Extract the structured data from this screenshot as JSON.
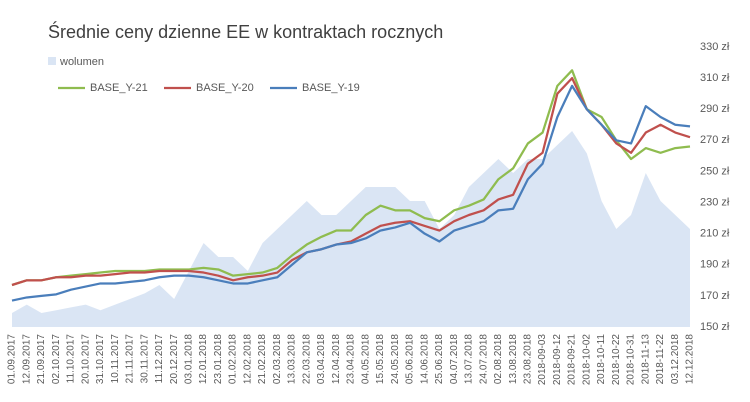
{
  "chart_data": {
    "type": "line",
    "title": "Średnie ceny dzienne EE w kontraktach rocznych",
    "categories": [
      "01.09.2017",
      "12.09.2017",
      "21.09.2017",
      "02.10.2017",
      "11.10.2017",
      "20.10.2017",
      "31.10.2017",
      "10.11.2017",
      "21.11.2017",
      "30.11.2017",
      "11.12.2017",
      "20.12.2017",
      "03.01.2018",
      "12.01.2018",
      "23.01.2018",
      "01.02.2018",
      "12.02.2018",
      "21.02.2018",
      "02.03.2018",
      "13.03.2018",
      "22.03.2018",
      "03.04.2018",
      "12.04.2018",
      "23.04.2018",
      "04.05.2018",
      "15.05.2018",
      "24.05.2018",
      "05.06.2018",
      "14.06.2018",
      "25.06.2018",
      "04.07.2018",
      "13.07.2018",
      "24.07.2018",
      "02.08.2018",
      "13.08.2018",
      "23.08.2018",
      "2018-09-03",
      "2018-09-12",
      "2018-09-21",
      "2018-10-02",
      "2018-10-11",
      "2018-10-22",
      "2018-10-31",
      "2018-11-13",
      "2018-11-22",
      "03.12.2018",
      "12.12.2018"
    ],
    "series": [
      {
        "name": "wolumen",
        "type": "area",
        "axis": "y2",
        "color": "#dae5f4",
        "values": [
          5,
          8,
          5,
          6,
          7,
          8,
          6,
          8,
          10,
          12,
          15,
          10,
          20,
          30,
          25,
          25,
          20,
          30,
          35,
          40,
          45,
          40,
          40,
          45,
          50,
          50,
          50,
          45,
          45,
          35,
          40,
          50,
          55,
          60,
          55,
          60,
          60,
          65,
          70,
          62,
          45,
          35,
          40,
          55,
          45,
          40,
          35
        ]
      },
      {
        "name": "BASE_Y-21",
        "color": "#8fbc4f",
        "values": [
          177,
          180,
          180,
          182,
          183,
          184,
          185,
          186,
          186,
          186,
          187,
          187,
          187,
          188,
          187,
          183,
          184,
          185,
          188,
          196,
          203,
          208,
          212,
          212,
          222,
          228,
          225,
          225,
          220,
          218,
          225,
          228,
          232,
          245,
          252,
          268,
          275,
          305,
          315,
          290,
          285,
          270,
          258,
          265,
          262,
          265,
          266
        ]
      },
      {
        "name": "BASE_Y-20",
        "color": "#c0504d",
        "values": [
          177,
          180,
          180,
          182,
          182,
          183,
          183,
          184,
          185,
          185,
          186,
          186,
          186,
          185,
          183,
          180,
          182,
          183,
          185,
          193,
          198,
          200,
          203,
          205,
          210,
          215,
          217,
          218,
          215,
          212,
          218,
          222,
          225,
          232,
          235,
          255,
          262,
          300,
          310,
          290,
          280,
          268,
          262,
          275,
          280,
          275,
          272
        ]
      },
      {
        "name": "BASE_Y-19",
        "color": "#4a7ebb",
        "values": [
          167,
          169,
          170,
          171,
          174,
          176,
          178,
          178,
          179,
          180,
          182,
          183,
          183,
          182,
          180,
          178,
          178,
          180,
          182,
          190,
          198,
          200,
          203,
          204,
          207,
          212,
          214,
          217,
          210,
          205,
          212,
          215,
          218,
          225,
          226,
          245,
          255,
          285,
          305,
          290,
          280,
          270,
          268,
          292,
          285,
          280,
          279
        ]
      }
    ],
    "ylim": [
      150,
      330
    ],
    "yticks": [
      {
        "value": 150,
        "label": "150 zł"
      },
      {
        "value": 170,
        "label": "170 zł"
      },
      {
        "value": 190,
        "label": "190 zł"
      },
      {
        "value": 210,
        "label": "210 zł"
      },
      {
        "value": 230,
        "label": "230 zł"
      },
      {
        "value": 250,
        "label": "250 zł"
      },
      {
        "value": 270,
        "label": "270 zł"
      },
      {
        "value": 290,
        "label": "290 zł"
      },
      {
        "value": 310,
        "label": "310 zł"
      },
      {
        "value": 330,
        "label": "330 zł"
      }
    ],
    "y2lim": [
      0,
      100
    ],
    "grid": false
  }
}
